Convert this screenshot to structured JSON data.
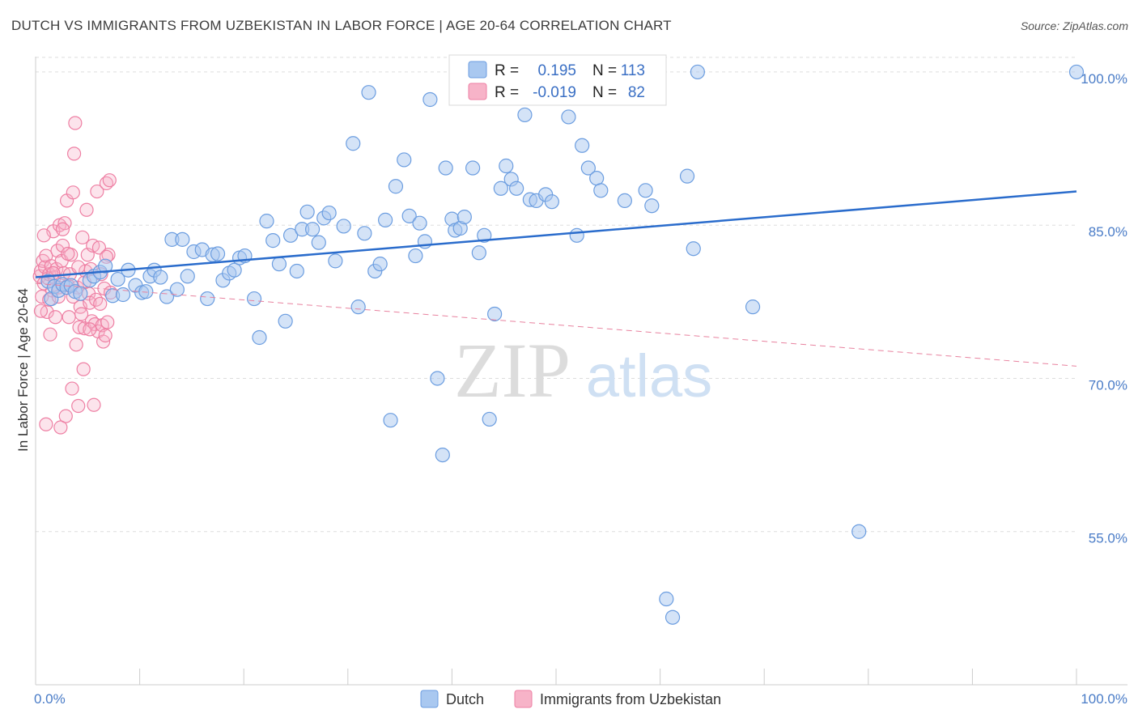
{
  "header": {
    "title": "DUTCH VS IMMIGRANTS FROM UZBEKISTAN IN LABOR FORCE | AGE 20-64 CORRELATION CHART",
    "source": "Source: ZipAtlas.com"
  },
  "watermark": {
    "zip": "ZIP",
    "atlas": "atlas"
  },
  "legend": {
    "r_label": "R =",
    "n_label": "N =",
    "dutch": {
      "r": "0.195",
      "n": "113"
    },
    "uzbek": {
      "r": "-0.019",
      "n": "82"
    }
  },
  "colors": {
    "dutch_fill": "#a9c8f0",
    "dutch_stroke": "#6b9de0",
    "dutch_line": "#2a6ccc",
    "uzbek_fill": "#f7b3c8",
    "uzbek_stroke": "#ee7fa3",
    "uzbek_line": "#e8829f",
    "grid": "#dddddd",
    "tick_text": "#4a7cc7"
  },
  "chart_data": {
    "type": "scatter",
    "title": "DUTCH VS IMMIGRANTS FROM UZBEKISTAN IN LABOR FORCE | AGE 20-64 CORRELATION CHART",
    "xlabel": "",
    "ylabel": "In Labor Force | Age 20-64",
    "xlim": [
      0,
      100
    ],
    "ylim": [
      40,
      101.5
    ],
    "x_tick_labels": [
      "0.0%",
      "100.0%"
    ],
    "y_ticks": [
      {
        "value": 55,
        "label": "55.0%"
      },
      {
        "value": 70,
        "label": "70.0%"
      },
      {
        "value": 85,
        "label": "85.0%"
      },
      {
        "value": 100,
        "label": "100.0%"
      }
    ],
    "grid": true,
    "legend_position": "top-center",
    "series": [
      {
        "name": "Dutch",
        "r": 0.195,
        "n": 113,
        "trend": {
          "x": [
            0,
            100
          ],
          "y": [
            79.9,
            88.3
          ],
          "style": "solid"
        },
        "points": [
          [
            1.2,
            79.5
          ],
          [
            1.5,
            77.8
          ],
          [
            1.8,
            79.0
          ],
          [
            2.2,
            78.6
          ],
          [
            2.6,
            79.2
          ],
          [
            3.0,
            78.9
          ],
          [
            3.4,
            79.1
          ],
          [
            3.8,
            78.5
          ],
          [
            4.3,
            78.3
          ],
          [
            5.2,
            79.6
          ],
          [
            5.6,
            80.0
          ],
          [
            6.2,
            80.4
          ],
          [
            6.7,
            81.0
          ],
          [
            7.4,
            78.1
          ],
          [
            7.9,
            79.7
          ],
          [
            8.4,
            78.2
          ],
          [
            8.9,
            80.6
          ],
          [
            9.6,
            79.1
          ],
          [
            10.2,
            78.4
          ],
          [
            10.6,
            78.5
          ],
          [
            11.0,
            80.0
          ],
          [
            11.4,
            80.6
          ],
          [
            12.0,
            79.9
          ],
          [
            12.6,
            78.0
          ],
          [
            13.1,
            83.6
          ],
          [
            13.6,
            78.7
          ],
          [
            14.1,
            83.6
          ],
          [
            14.6,
            80.0
          ],
          [
            15.2,
            82.4
          ],
          [
            16.0,
            82.6
          ],
          [
            16.5,
            77.8
          ],
          [
            17.0,
            82.1
          ],
          [
            17.5,
            82.2
          ],
          [
            18.0,
            79.6
          ],
          [
            18.6,
            80.3
          ],
          [
            19.1,
            80.6
          ],
          [
            19.6,
            81.8
          ],
          [
            20.1,
            82.0
          ],
          [
            21.0,
            77.8
          ],
          [
            21.5,
            74.0
          ],
          [
            22.2,
            85.4
          ],
          [
            22.8,
            83.5
          ],
          [
            23.4,
            81.2
          ],
          [
            24.0,
            75.6
          ],
          [
            24.5,
            84.0
          ],
          [
            25.1,
            80.5
          ],
          [
            25.6,
            84.6
          ],
          [
            26.1,
            86.3
          ],
          [
            26.6,
            84.6
          ],
          [
            27.2,
            83.3
          ],
          [
            27.7,
            85.7
          ],
          [
            28.2,
            86.2
          ],
          [
            28.8,
            81.5
          ],
          [
            29.6,
            84.9
          ],
          [
            30.5,
            93.0
          ],
          [
            31.0,
            77.0
          ],
          [
            31.6,
            84.2
          ],
          [
            32.0,
            98.0
          ],
          [
            32.6,
            80.5
          ],
          [
            33.1,
            81.2
          ],
          [
            33.6,
            85.5
          ],
          [
            34.1,
            65.9
          ],
          [
            34.6,
            88.8
          ],
          [
            35.4,
            91.4
          ],
          [
            35.9,
            85.9
          ],
          [
            36.5,
            82.0
          ],
          [
            36.9,
            85.2
          ],
          [
            37.4,
            83.4
          ],
          [
            37.9,
            97.3
          ],
          [
            38.6,
            70.0
          ],
          [
            39.1,
            62.5
          ],
          [
            39.4,
            90.6
          ],
          [
            40.0,
            85.6
          ],
          [
            40.3,
            84.5
          ],
          [
            40.8,
            84.7
          ],
          [
            41.2,
            85.8
          ],
          [
            42.0,
            90.6
          ],
          [
            42.6,
            82.3
          ],
          [
            43.1,
            84.0
          ],
          [
            43.6,
            66.0
          ],
          [
            44.1,
            76.3
          ],
          [
            44.7,
            88.6
          ],
          [
            45.2,
            90.8
          ],
          [
            45.7,
            89.5
          ],
          [
            46.2,
            88.6
          ],
          [
            47.0,
            95.8
          ],
          [
            47.5,
            87.5
          ],
          [
            48.1,
            87.4
          ],
          [
            49.0,
            88.0
          ],
          [
            49.6,
            87.3
          ],
          [
            50.1,
            100.0
          ],
          [
            51.2,
            95.6
          ],
          [
            52.0,
            84.0
          ],
          [
            52.5,
            92.8
          ],
          [
            53.1,
            90.6
          ],
          [
            53.9,
            89.6
          ],
          [
            54.3,
            88.4
          ],
          [
            56.6,
            87.4
          ],
          [
            58.6,
            88.4
          ],
          [
            59.2,
            86.9
          ],
          [
            60.6,
            48.4
          ],
          [
            61.2,
            46.6
          ],
          [
            62.6,
            89.8
          ],
          [
            63.2,
            82.7
          ],
          [
            63.6,
            100.0
          ],
          [
            68.9,
            77.0
          ],
          [
            79.1,
            55.0
          ],
          [
            100.0,
            100.0
          ]
        ]
      },
      {
        "name": "Immigrants from Uzbekistan",
        "r": -0.019,
        "n": 82,
        "trend": {
          "x": [
            0,
            100
          ],
          "y": [
            79.3,
            71.2
          ],
          "style": "dashed"
        },
        "points": [
          [
            0.4,
            80.0
          ],
          [
            0.5,
            80.5
          ],
          [
            0.6,
            78.0
          ],
          [
            0.7,
            81.5
          ],
          [
            0.8,
            79.3
          ],
          [
            0.9,
            80.9
          ],
          [
            1.0,
            65.5
          ],
          [
            1.0,
            82.0
          ],
          [
            1.1,
            76.5
          ],
          [
            1.2,
            79.8
          ],
          [
            1.3,
            80.2
          ],
          [
            1.4,
            74.3
          ],
          [
            1.5,
            81.0
          ],
          [
            1.6,
            78.6
          ],
          [
            1.7,
            84.4
          ],
          [
            1.8,
            79.9
          ],
          [
            1.9,
            76.0
          ],
          [
            2.0,
            80.7
          ],
          [
            2.1,
            82.5
          ],
          [
            2.2,
            78.9
          ],
          [
            2.3,
            85.0
          ],
          [
            2.4,
            65.2
          ],
          [
            2.5,
            81.5
          ],
          [
            2.6,
            83.0
          ],
          [
            2.7,
            80.3
          ],
          [
            2.8,
            85.2
          ],
          [
            2.9,
            66.3
          ],
          [
            3.0,
            87.4
          ],
          [
            3.1,
            79.1
          ],
          [
            3.2,
            76.0
          ],
          [
            3.3,
            80.2
          ],
          [
            3.4,
            82.1
          ],
          [
            3.5,
            69.0
          ],
          [
            3.6,
            88.2
          ],
          [
            3.7,
            92.0
          ],
          [
            3.8,
            95.0
          ],
          [
            3.9,
            73.3
          ],
          [
            4.0,
            78.9
          ],
          [
            4.1,
            67.3
          ],
          [
            4.2,
            75.0
          ],
          [
            4.3,
            77.0
          ],
          [
            4.4,
            76.3
          ],
          [
            4.5,
            83.8
          ],
          [
            4.6,
            70.9
          ],
          [
            4.7,
            74.9
          ],
          [
            4.8,
            80.5
          ],
          [
            4.9,
            86.5
          ],
          [
            5.0,
            82.1
          ],
          [
            5.1,
            78.3
          ],
          [
            5.2,
            77.4
          ],
          [
            5.3,
            80.7
          ],
          [
            5.4,
            75.6
          ],
          [
            5.5,
            83.0
          ],
          [
            5.6,
            67.4
          ],
          [
            5.7,
            75.3
          ],
          [
            5.8,
            77.7
          ],
          [
            5.9,
            88.3
          ],
          [
            6.0,
            74.6
          ],
          [
            6.1,
            82.8
          ],
          [
            6.2,
            77.3
          ],
          [
            6.3,
            80.2
          ],
          [
            6.4,
            75.2
          ],
          [
            6.5,
            73.6
          ],
          [
            6.6,
            78.8
          ],
          [
            6.7,
            74.2
          ],
          [
            6.8,
            89.1
          ],
          [
            6.9,
            75.5
          ],
          [
            7.0,
            82.1
          ],
          [
            7.1,
            89.4
          ],
          [
            7.2,
            78.4
          ],
          [
            0.5,
            76.6
          ],
          [
            0.8,
            84.0
          ],
          [
            1.3,
            77.7
          ],
          [
            1.7,
            80.3
          ],
          [
            2.2,
            78.0
          ],
          [
            2.6,
            84.6
          ],
          [
            3.1,
            82.2
          ],
          [
            3.6,
            78.0
          ],
          [
            4.1,
            80.9
          ],
          [
            4.7,
            79.4
          ],
          [
            5.2,
            74.8
          ],
          [
            6.8,
            81.9
          ]
        ]
      }
    ]
  },
  "bottom_legend": {
    "dutch": "Dutch",
    "uzbek": "Immigrants from Uzbekistan"
  }
}
